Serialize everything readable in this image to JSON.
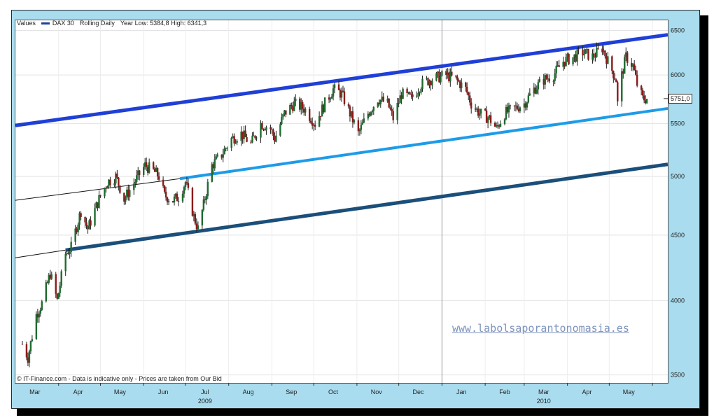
{
  "legend": {
    "label": "Values",
    "series": "DAX 30",
    "mode": "Rolling Daily",
    "range": "Year Low: 5384,8 High: 6341,3"
  },
  "source": "© IT-Finance.com - Data is indicative only - Prices are taken from Our Bid",
  "watermark": "www.labolsaporantonomasia.es",
  "last_value": "5751,0",
  "colors": {
    "frame": "#a9dcee",
    "up_candle": "#1e6b2e",
    "down_candle": "#8b1a1a",
    "channel_top": "#1f3fd6",
    "channel_mid": "#1e9be8",
    "channel_bottom": "#1b4f7a",
    "thin_line": "#111111"
  },
  "chart_data": {
    "type": "candlestick",
    "series": "DAX 30",
    "scale": "log",
    "ylim": [
      3450,
      6620
    ],
    "y_ticks": [
      "3500",
      "4000",
      "4500",
      "5000",
      "5500",
      "6000",
      "6500"
    ],
    "x_month_labels": [
      "Mar",
      "Apr",
      "May",
      "Jun",
      "Jul",
      "Aug",
      "Sep",
      "Oct",
      "Nov",
      "Dec",
      "Jan",
      "Feb",
      "Mar",
      "Apr",
      "May"
    ],
    "x_year_labels": [
      "2009",
      "2010"
    ],
    "close_path": [
      [
        "2009-03-06",
        3700
      ],
      [
        "2009-03-10",
        3610
      ],
      [
        "2009-03-16",
        3900
      ],
      [
        "2009-03-20",
        3980
      ],
      [
        "2009-03-26",
        4200
      ],
      [
        "2009-03-31",
        4000
      ],
      [
        "2009-04-06",
        4350
      ],
      [
        "2009-04-10",
        4400
      ],
      [
        "2009-04-17",
        4700
      ],
      [
        "2009-04-22",
        4550
      ],
      [
        "2009-04-30",
        4800
      ],
      [
        "2009-05-06",
        4950
      ],
      [
        "2009-05-12",
        5000
      ],
      [
        "2009-05-18",
        4800
      ],
      [
        "2009-05-26",
        4960
      ],
      [
        "2009-06-02",
        5100
      ],
      [
        "2009-06-08",
        5050
      ],
      [
        "2009-06-12",
        5000
      ],
      [
        "2009-06-16",
        4830
      ],
      [
        "2009-06-22",
        4790
      ],
      [
        "2009-06-26",
        4820
      ],
      [
        "2009-07-01",
        4950
      ],
      [
        "2009-07-07",
        4650
      ],
      [
        "2009-07-10",
        4550
      ],
      [
        "2009-07-14",
        4750
      ],
      [
        "2009-07-20",
        5100
      ],
      [
        "2009-07-27",
        5200
      ],
      [
        "2009-08-03",
        5350
      ],
      [
        "2009-08-10",
        5400
      ],
      [
        "2009-08-17",
        5300
      ],
      [
        "2009-08-24",
        5500
      ],
      [
        "2009-08-31",
        5450
      ],
      [
        "2009-09-03",
        5350
      ],
      [
        "2009-09-10",
        5600
      ],
      [
        "2009-09-17",
        5700
      ],
      [
        "2009-09-24",
        5650
      ],
      [
        "2009-10-02",
        5500
      ],
      [
        "2009-10-09",
        5700
      ],
      [
        "2009-10-15",
        5850
      ],
      [
        "2009-10-21",
        5800
      ],
      [
        "2009-10-27",
        5600
      ],
      [
        "2009-11-02",
        5400
      ],
      [
        "2009-11-09",
        5600
      ],
      [
        "2009-11-16",
        5750
      ],
      [
        "2009-11-23",
        5700
      ],
      [
        "2009-11-27",
        5550
      ],
      [
        "2009-12-03",
        5800
      ],
      [
        "2009-12-10",
        5750
      ],
      [
        "2009-12-17",
        5900
      ],
      [
        "2009-12-23",
        5950
      ],
      [
        "2010-01-04",
        6000
      ],
      [
        "2010-01-11",
        5950
      ],
      [
        "2010-01-18",
        5850
      ],
      [
        "2010-01-22",
        5700
      ],
      [
        "2010-01-28",
        5600
      ],
      [
        "2010-02-04",
        5550
      ],
      [
        "2010-02-09",
        5450
      ],
      [
        "2010-02-15",
        5600
      ],
      [
        "2010-02-22",
        5650
      ],
      [
        "2010-03-01",
        5700
      ],
      [
        "2010-03-08",
        5850
      ],
      [
        "2010-03-15",
        5950
      ],
      [
        "2010-03-22",
        6000
      ],
      [
        "2010-03-29",
        6150
      ],
      [
        "2010-04-06",
        6200
      ],
      [
        "2010-04-12",
        6250
      ],
      [
        "2010-04-19",
        6200
      ],
      [
        "2010-04-26",
        6300
      ],
      [
        "2010-04-30",
        6150
      ],
      [
        "2010-05-06",
        5950
      ],
      [
        "2010-05-07",
        5700
      ],
      [
        "2010-05-10",
        6000
      ],
      [
        "2010-05-13",
        6200
      ],
      [
        "2010-05-18",
        6100
      ],
      [
        "2010-05-21",
        5900
      ],
      [
        "2010-05-25",
        5750
      ],
      [
        "2010-05-28",
        5751
      ]
    ],
    "trendlines": [
      {
        "role": "channel-top",
        "points": [
          [
            "2009-03-01",
            5480
          ],
          [
            "2010-06-12",
            6450
          ]
        ]
      },
      {
        "role": "channel-middle",
        "points": [
          [
            "2009-06-27",
            4980
          ],
          [
            "2010-06-12",
            5650
          ]
        ]
      },
      {
        "role": "channel-bottom",
        "points": [
          [
            "2009-04-06",
            4380
          ],
          [
            "2010-06-12",
            5110
          ]
        ]
      },
      {
        "role": "thin-upper",
        "points": [
          [
            "2009-03-01",
            4790
          ],
          [
            "2009-06-27",
            4980
          ]
        ]
      },
      {
        "role": "thin-lower",
        "points": [
          [
            "2009-03-01",
            4320
          ],
          [
            "2009-04-06",
            4380
          ]
        ]
      }
    ],
    "grid": true,
    "current_value": 5751
  }
}
